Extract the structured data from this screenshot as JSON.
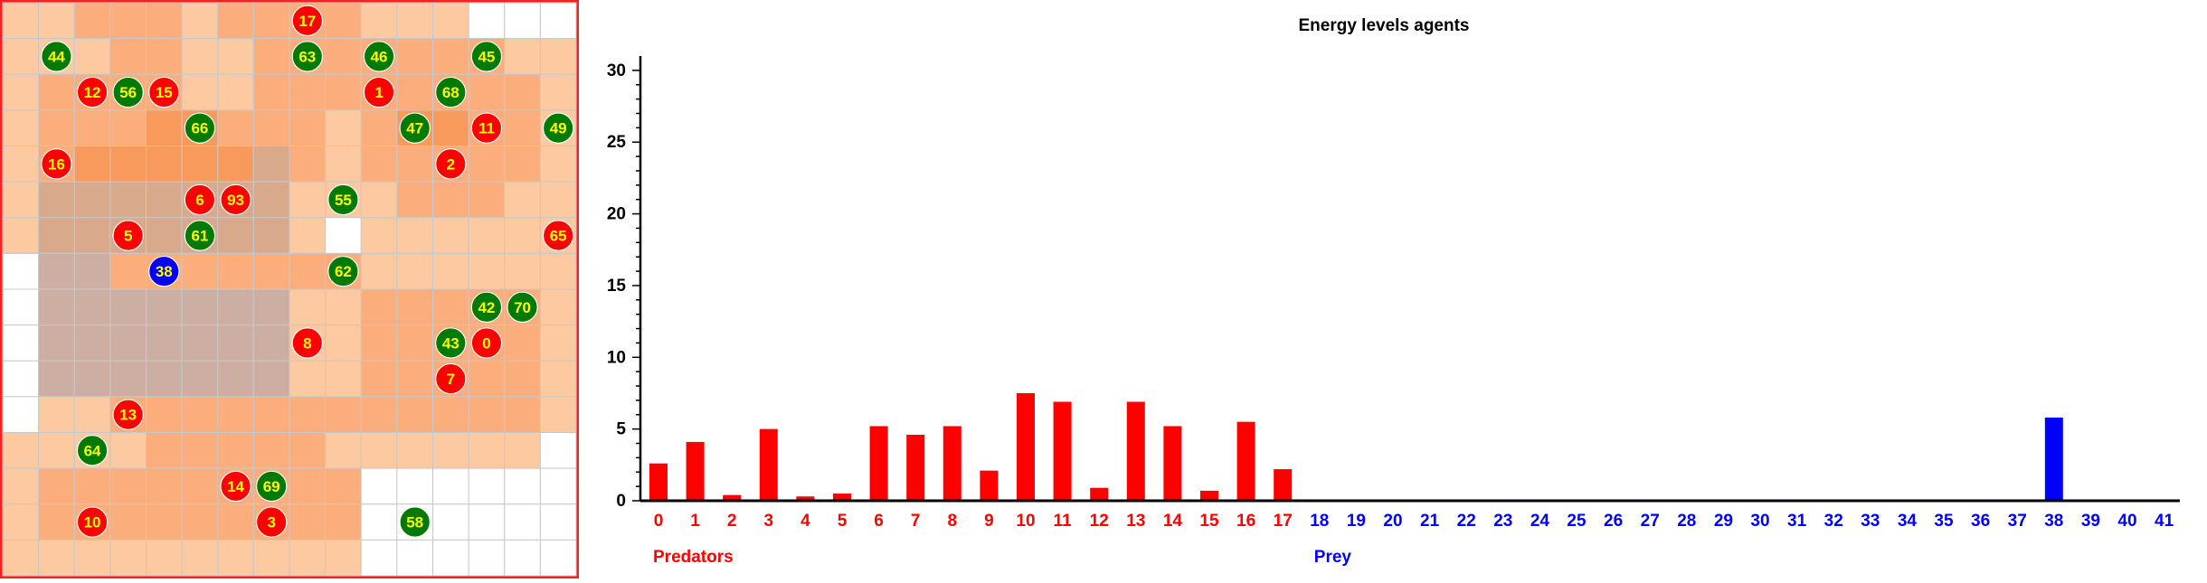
{
  "grid": {
    "cols": 16,
    "rows": 16,
    "colors": {
      "white": "#ffffff",
      "light": "#fdc9a0",
      "medium": "#fbad7b",
      "dark": "#f89a5c",
      "gray_light": "#d9a98c",
      "gray": "#cdaea2",
      "line": "#c8c8c8",
      "border": "#ff1f1f",
      "predator": "#ff0000",
      "prey": "#0000ff",
      "plant": "#007a00",
      "agent_label": "#ffff00"
    },
    "cells": [
      [
        "light",
        "light",
        "medium",
        "medium",
        "medium",
        "light",
        "medium",
        "medium",
        "medium",
        "medium",
        "light",
        "light",
        "light",
        "white",
        "white",
        "white"
      ],
      [
        "light",
        "light",
        "light",
        "medium",
        "medium",
        "light",
        "light",
        "medium",
        "medium",
        "medium",
        "medium",
        "medium",
        "medium",
        "medium",
        "light",
        "light"
      ],
      [
        "light",
        "medium",
        "medium",
        "medium",
        "medium",
        "light",
        "light",
        "medium",
        "medium",
        "medium",
        "medium",
        "medium",
        "medium",
        "medium",
        "medium",
        "light"
      ],
      [
        "light",
        "medium",
        "medium",
        "medium",
        "dark",
        "dark",
        "medium",
        "medium",
        "medium",
        "light",
        "medium",
        "dark",
        "dark",
        "medium",
        "medium",
        "light"
      ],
      [
        "light",
        "medium",
        "dark",
        "dark",
        "dark",
        "dark",
        "dark",
        "gray_light",
        "medium",
        "light",
        "medium",
        "medium",
        "medium",
        "medium",
        "medium",
        "light"
      ],
      [
        "light",
        "gray_light",
        "gray_light",
        "gray_light",
        "gray_light",
        "gray_light",
        "gray_light",
        "gray_light",
        "light",
        "light",
        "light",
        "medium",
        "medium",
        "medium",
        "light",
        "light"
      ],
      [
        "light",
        "gray_light",
        "gray_light",
        "gray_light",
        "gray_light",
        "gray_light",
        "gray_light",
        "gray_light",
        "light",
        "white",
        "light",
        "light",
        "light",
        "light",
        "light",
        "light"
      ],
      [
        "white",
        "gray",
        "gray",
        "medium",
        "medium",
        "medium",
        "medium",
        "medium",
        "medium",
        "medium",
        "light",
        "light",
        "light",
        "light",
        "light",
        "light"
      ],
      [
        "white",
        "gray",
        "gray",
        "gray",
        "gray",
        "gray",
        "gray",
        "gray",
        "light",
        "light",
        "medium",
        "medium",
        "medium",
        "medium",
        "medium",
        "light"
      ],
      [
        "white",
        "gray",
        "gray",
        "gray",
        "gray",
        "gray",
        "gray",
        "gray",
        "light",
        "light",
        "medium",
        "medium",
        "medium",
        "medium",
        "medium",
        "light"
      ],
      [
        "white",
        "gray",
        "gray",
        "gray",
        "gray",
        "gray",
        "gray",
        "gray",
        "light",
        "light",
        "medium",
        "medium",
        "medium",
        "medium",
        "medium",
        "light"
      ],
      [
        "white",
        "light",
        "light",
        "medium",
        "medium",
        "medium",
        "medium",
        "medium",
        "medium",
        "medium",
        "medium",
        "medium",
        "medium",
        "medium",
        "medium",
        "light"
      ],
      [
        "light",
        "light",
        "light",
        "light",
        "medium",
        "medium",
        "medium",
        "medium",
        "medium",
        "light",
        "light",
        "light",
        "light",
        "light",
        "light",
        "white"
      ],
      [
        "light",
        "medium",
        "medium",
        "medium",
        "medium",
        "medium",
        "medium",
        "medium",
        "medium",
        "medium",
        "white",
        "white",
        "white",
        "white",
        "white",
        "white"
      ],
      [
        "light",
        "medium",
        "medium",
        "medium",
        "medium",
        "medium",
        "medium",
        "medium",
        "medium",
        "medium",
        "white",
        "white",
        "white",
        "white",
        "white",
        "white"
      ],
      [
        "light",
        "light",
        "light",
        "light",
        "light",
        "light",
        "light",
        "light",
        "light",
        "light",
        "white",
        "white",
        "white",
        "white",
        "white",
        "white"
      ]
    ],
    "agents": [
      {
        "id": "17",
        "kind": "predator",
        "col": 8,
        "row": 0
      },
      {
        "id": "44",
        "kind": "plant",
        "col": 1,
        "row": 1
      },
      {
        "id": "63",
        "kind": "plant",
        "col": 8,
        "row": 1
      },
      {
        "id": "46",
        "kind": "plant",
        "col": 10,
        "row": 1
      },
      {
        "id": "45",
        "kind": "plant",
        "col": 13,
        "row": 1
      },
      {
        "id": "12",
        "kind": "predator",
        "col": 2,
        "row": 2
      },
      {
        "id": "56",
        "kind": "plant",
        "col": 3,
        "row": 2
      },
      {
        "id": "15",
        "kind": "predator",
        "col": 4,
        "row": 2
      },
      {
        "id": "1",
        "kind": "predator",
        "col": 10,
        "row": 2
      },
      {
        "id": "68",
        "kind": "plant",
        "col": 12,
        "row": 2
      },
      {
        "id": "66",
        "kind": "plant",
        "col": 5,
        "row": 3
      },
      {
        "id": "47",
        "kind": "plant",
        "col": 11,
        "row": 3
      },
      {
        "id": "11",
        "kind": "predator",
        "col": 13,
        "row": 3
      },
      {
        "id": "49",
        "kind": "plant",
        "col": 15,
        "row": 3
      },
      {
        "id": "16",
        "kind": "predator",
        "col": 1,
        "row": 4
      },
      {
        "id": "2",
        "kind": "predator",
        "col": 12,
        "row": 4
      },
      {
        "id": "6",
        "kind": "predator",
        "col": 5,
        "row": 5
      },
      {
        "id": "93",
        "kind": "predator",
        "col": 6,
        "row": 5
      },
      {
        "id": "55",
        "kind": "plant",
        "col": 9,
        "row": 5
      },
      {
        "id": "5",
        "kind": "predator",
        "col": 3,
        "row": 6
      },
      {
        "id": "61",
        "kind": "plant",
        "col": 5,
        "row": 6
      },
      {
        "id": "65",
        "kind": "predator",
        "col": 15,
        "row": 6
      },
      {
        "id": "38",
        "kind": "prey",
        "col": 4,
        "row": 7
      },
      {
        "id": "62",
        "kind": "plant",
        "col": 9,
        "row": 7
      },
      {
        "id": "42",
        "kind": "plant",
        "col": 13,
        "row": 8
      },
      {
        "id": "70",
        "kind": "plant",
        "col": 14,
        "row": 8
      },
      {
        "id": "8",
        "kind": "predator",
        "col": 8,
        "row": 9
      },
      {
        "id": "43",
        "kind": "plant",
        "col": 12,
        "row": 9
      },
      {
        "id": "0",
        "kind": "predator",
        "col": 13,
        "row": 9
      },
      {
        "id": "7",
        "kind": "predator",
        "col": 12,
        "row": 10
      },
      {
        "id": "13",
        "kind": "predator",
        "col": 3,
        "row": 11
      },
      {
        "id": "64",
        "kind": "plant",
        "col": 2,
        "row": 12
      },
      {
        "id": "14",
        "kind": "predator",
        "col": 6,
        "row": 13
      },
      {
        "id": "69",
        "kind": "plant",
        "col": 7,
        "row": 13
      },
      {
        "id": "10",
        "kind": "predator",
        "col": 2,
        "row": 14
      },
      {
        "id": "3",
        "kind": "predator",
        "col": 7,
        "row": 14
      },
      {
        "id": "58",
        "kind": "plant",
        "col": 11,
        "row": 14
      }
    ]
  },
  "chart_data": {
    "type": "bar",
    "title": "Energy levels agents",
    "xlabel": "",
    "ylabel": "",
    "ylim": [
      0,
      31
    ],
    "yticks": [
      "0",
      "5",
      "10",
      "15",
      "20",
      "25",
      "30"
    ],
    "grid": false,
    "categories": [
      "0",
      "1",
      "2",
      "3",
      "4",
      "5",
      "6",
      "7",
      "8",
      "9",
      "10",
      "11",
      "12",
      "13",
      "14",
      "15",
      "16",
      "17",
      "18",
      "19",
      "20",
      "21",
      "22",
      "23",
      "24",
      "25",
      "26",
      "27",
      "28",
      "29",
      "30",
      "31",
      "32",
      "33",
      "34",
      "35",
      "36",
      "37",
      "38",
      "39",
      "40",
      "41"
    ],
    "values": [
      2.6,
      4.1,
      0.4,
      5.0,
      0.3,
      0.5,
      5.2,
      4.6,
      5.2,
      2.1,
      7.5,
      6.9,
      0.9,
      6.9,
      5.2,
      0.7,
      5.5,
      2.2,
      0,
      0,
      0,
      0,
      0,
      0,
      0,
      0,
      0,
      0,
      0,
      0,
      0,
      0,
      0,
      0,
      0,
      0,
      0,
      0,
      5.8,
      0,
      0,
      0
    ],
    "groups": [
      {
        "name": "Predators",
        "from": 0,
        "to": 17,
        "color": "#ff0000"
      },
      {
        "name": "Prey",
        "from": 18,
        "to": 41,
        "color": "#0000ff"
      }
    ]
  }
}
